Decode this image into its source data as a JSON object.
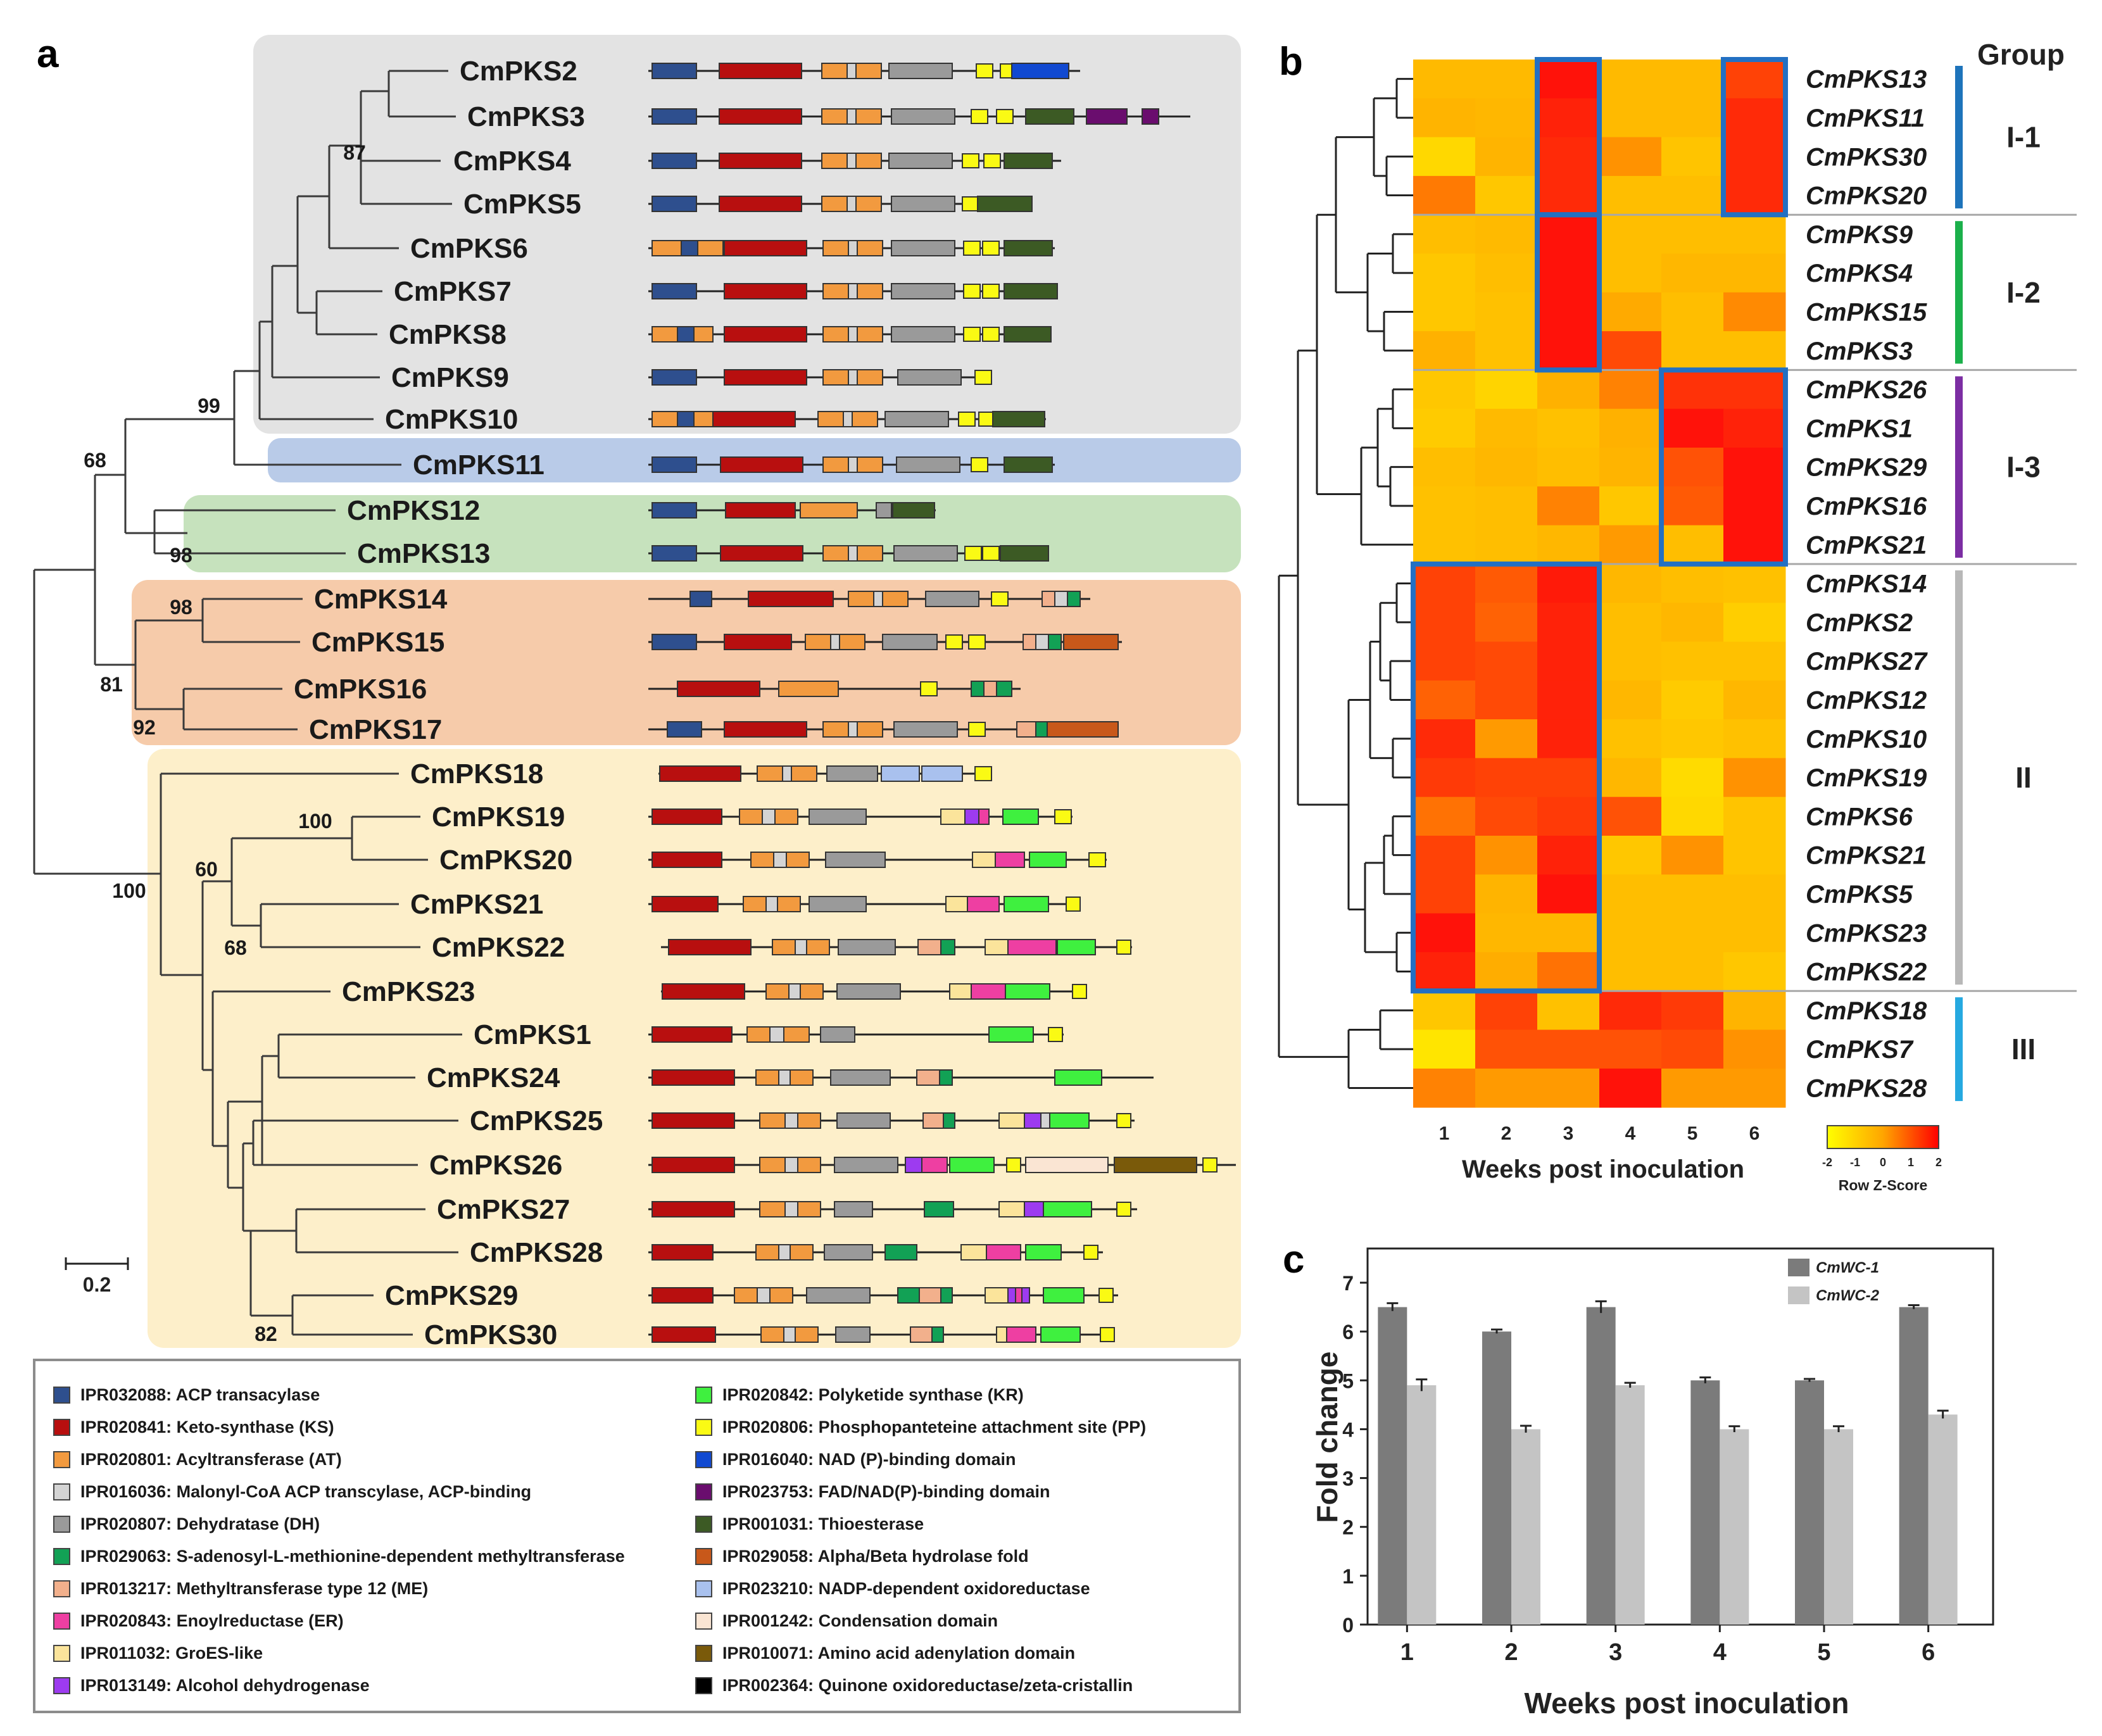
{
  "panels": {
    "a": {
      "label": "a"
    },
    "b": {
      "label": "b"
    },
    "c": {
      "label": "c"
    }
  },
  "tree": {
    "scale_label": "0.2",
    "leaves": [
      "CmPKS2",
      "CmPKS3",
      "CmPKS4",
      "CmPKS5",
      "CmPKS6",
      "CmPKS7",
      "CmPKS8",
      "CmPKS9",
      "CmPKS10",
      "CmPKS11",
      "CmPKS12",
      "CmPKS13",
      "CmPKS14",
      "CmPKS15",
      "CmPKS16",
      "CmPKS17",
      "CmPKS18",
      "CmPKS19",
      "CmPKS20",
      "CmPKS21",
      "CmPKS22",
      "CmPKS23",
      "CmPKS1",
      "CmPKS24",
      "CmPKS25",
      "CmPKS26",
      "CmPKS27",
      "CmPKS28",
      "CmPKS29",
      "CmPKS30"
    ],
    "bootstrap": [
      "87",
      "99",
      "68",
      "98",
      "98",
      "81",
      "92",
      "100",
      "60",
      "68",
      "100",
      "82"
    ]
  },
  "legend": {
    "items": [
      {
        "label": "IPR032088: ACP transacylase",
        "color": "#2e4f8e"
      },
      {
        "label": "IPR020841: Keto-synthase (KS)",
        "color": "#b80f0f"
      },
      {
        "label": "IPR020801: Acyltransferase (AT)",
        "color": "#f29a3f"
      },
      {
        "label": "IPR016036: Malonyl-CoA ACP transcylase, ACP-binding",
        "color": "#d4d4d4"
      },
      {
        "label": "IPR020807: Dehydratase (DH)",
        "color": "#9a9a9a"
      },
      {
        "label": "IPR029063: S-adenosyl-L-methionine-dependent methyltransferase",
        "color": "#12a155"
      },
      {
        "label": "IPR013217: Methyltransferase type 12 (ME)",
        "color": "#f2b08c"
      },
      {
        "label": "IPR020843: Enoylreductase (ER)",
        "color": "#ee3fa2"
      },
      {
        "label": "IPR011032: GroES-like",
        "color": "#fbe49b"
      },
      {
        "label": "IPR013149: Alcohol dehydrogenase",
        "color": "#9d3bf0"
      },
      {
        "label": "IPR020842: Polyketide synthase (KR)",
        "color": "#3ff03f"
      },
      {
        "label": "IPR020806: Phosphopanteteine attachment site (PP)",
        "color": "#fafa14"
      },
      {
        "label": "IPR016040: NAD (P)-binding domain",
        "color": "#1149d1"
      },
      {
        "label": "IPR023753: FAD/NAD(P)-binding domain",
        "color": "#6a0d6e"
      },
      {
        "label": "IPR001031: Thioesterase",
        "color": "#3c5a24"
      },
      {
        "label": "IPR029058: Alpha/Beta hydrolase fold",
        "color": "#c8581a"
      },
      {
        "label": "IPR023210: NADP-dependent oxidoreductase",
        "color": "#a9c1ee"
      },
      {
        "label": "IPR001242: Condensation domain",
        "color": "#fae5d3"
      },
      {
        "label": "IPR010071: Amino acid adenylation domain",
        "color": "#7a5a0a"
      },
      {
        "label": "IPR002364: Quinone oxidoreductase/zeta-cristallin",
        "color": "#000000"
      }
    ]
  },
  "heatmap": {
    "group_title": "Group",
    "rows": [
      "CmPKS13",
      "CmPKS11",
      "CmPKS30",
      "CmPKS20",
      "CmPKS9",
      "CmPKS4",
      "CmPKS15",
      "CmPKS3",
      "CmPKS26",
      "CmPKS1",
      "CmPKS29",
      "CmPKS16",
      "CmPKS21",
      "CmPKS14",
      "CmPKS2",
      "CmPKS27",
      "CmPKS12",
      "CmPKS10",
      "CmPKS19",
      "CmPKS6",
      "CmPKS21",
      "CmPKS5",
      "CmPKS23",
      "CmPKS22",
      "CmPKS18",
      "CmPKS7",
      "CmPKS28"
    ],
    "columns": [
      "1",
      "2",
      "3",
      "4",
      "5",
      "6"
    ],
    "z": [
      [
        -0.5,
        -0.5,
        1.9,
        -0.5,
        -0.5,
        1.3
      ],
      [
        -0.3,
        -0.4,
        1.7,
        -0.5,
        -0.5,
        1.6
      ],
      [
        -1.4,
        -0.3,
        1.6,
        0.3,
        -0.8,
        1.6
      ],
      [
        0.6,
        -0.9,
        1.6,
        -0.6,
        -0.6,
        1.6
      ],
      [
        -0.6,
        -0.5,
        1.9,
        -0.6,
        -0.6,
        -0.6
      ],
      [
        -0.9,
        -0.6,
        1.9,
        -0.6,
        -0.4,
        -0.4
      ],
      [
        -0.9,
        -0.7,
        1.9,
        0.0,
        -0.6,
        0.4
      ],
      [
        -0.2,
        -0.7,
        1.9,
        1.2,
        -0.6,
        -0.6
      ],
      [
        -0.9,
        -1.3,
        -0.2,
        0.5,
        1.5,
        1.5
      ],
      [
        -1.0,
        -0.5,
        -0.7,
        -0.2,
        1.9,
        1.7
      ],
      [
        -0.6,
        -0.4,
        -0.6,
        -0.3,
        1.1,
        1.9
      ],
      [
        -0.7,
        -0.6,
        0.5,
        -0.9,
        1.0,
        1.9
      ],
      [
        -0.7,
        -0.6,
        -0.4,
        0.2,
        -0.6,
        1.9
      ],
      [
        1.3,
        1.0,
        1.8,
        -0.4,
        -0.6,
        -0.7
      ],
      [
        1.3,
        0.9,
        1.7,
        -0.6,
        -0.4,
        -1.1
      ],
      [
        1.3,
        1.2,
        1.7,
        -0.6,
        -0.7,
        -0.7
      ],
      [
        0.9,
        1.2,
        1.7,
        -0.4,
        -1.0,
        -0.4
      ],
      [
        1.6,
        0.2,
        1.7,
        -0.7,
        -0.9,
        -0.7
      ],
      [
        1.4,
        1.3,
        1.3,
        -0.4,
        -1.5,
        0.3
      ],
      [
        0.7,
        1.2,
        1.4,
        1.1,
        -1.4,
        -0.8
      ],
      [
        1.3,
        0.3,
        1.7,
        -0.9,
        0.3,
        -0.8
      ],
      [
        1.3,
        -0.3,
        1.9,
        -0.6,
        -0.6,
        -0.6
      ],
      [
        1.9,
        -0.4,
        -0.4,
        -0.6,
        -0.6,
        -0.6
      ],
      [
        1.7,
        -0.1,
        0.7,
        -0.6,
        -0.6,
        -0.9
      ],
      [
        -0.9,
        1.3,
        -0.7,
        1.6,
        1.4,
        -0.3
      ],
      [
        -1.8,
        1.1,
        1.1,
        1.1,
        1.2,
        0.3
      ],
      [
        0.5,
        0.2,
        0.2,
        1.9,
        0.2,
        0.2
      ]
    ],
    "groups": [
      {
        "label": "I-1",
        "color": "#1e74bb"
      },
      {
        "label": "I-2",
        "color": "#1bb04b"
      },
      {
        "label": "I-3",
        "color": "#7c2ea3"
      },
      {
        "label": "II",
        "color": "#b8b8b8"
      },
      {
        "label": "III",
        "color": "#26a9e0"
      }
    ],
    "xlabel": "Weeks post inoculation",
    "colorbar": {
      "title": "Row Z-Score",
      "ticks": [
        "-2",
        "-1",
        "0",
        "1",
        "2"
      ]
    }
  },
  "chart_data": {
    "type": "bar",
    "categories": [
      "1",
      "2",
      "3",
      "4",
      "5",
      "6"
    ],
    "series": [
      {
        "name": "CmWC-1",
        "color": "#7b7b7b",
        "values": [
          6.5,
          6.0,
          6.5,
          5.0,
          5.0,
          6.5
        ],
        "errors": [
          0.08,
          0.04,
          0.12,
          0.06,
          0.03,
          0.04
        ]
      },
      {
        "name": "CmWC-2",
        "color": "#c4c4c4",
        "values": [
          4.9,
          4.0,
          4.9,
          4.0,
          4.0,
          4.3
        ],
        "errors": [
          0.12,
          0.07,
          0.05,
          0.06,
          0.06,
          0.08
        ]
      }
    ],
    "xlabel": "Weeks post inoculation",
    "ylabel": "Fold change",
    "ylim": [
      0,
      7
    ],
    "yticks": [
      "0",
      "1",
      "2",
      "3",
      "4",
      "5",
      "6",
      "7"
    ]
  }
}
